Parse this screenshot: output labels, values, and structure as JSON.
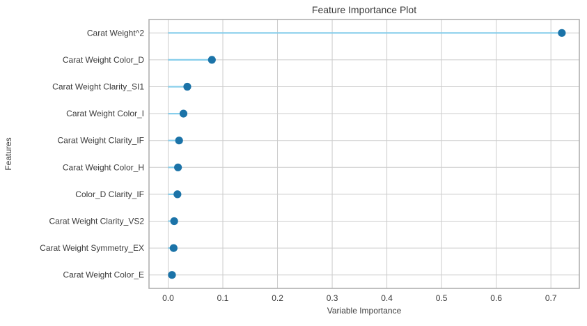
{
  "chart_data": {
    "type": "scatter",
    "variant": "lollipop",
    "title": "Feature Importance Plot",
    "xlabel": "Variable Importance",
    "ylabel": "Features",
    "categories": [
      "Carat Weight^2",
      "Carat Weight Color_D",
      "Carat Weight Clarity_SI1",
      "Carat Weight Color_I",
      "Carat Weight Clarity_IF",
      "Carat Weight Color_H",
      "Color_D Clarity_IF",
      "Carat Weight Clarity_VS2",
      "Carat Weight Symmetry_EX",
      "Carat Weight Color_E"
    ],
    "values": [
      0.72,
      0.08,
      0.035,
      0.028,
      0.02,
      0.018,
      0.017,
      0.011,
      0.01,
      0.007
    ],
    "x_ticks": [
      0.0,
      0.1,
      0.2,
      0.3,
      0.4,
      0.5,
      0.6,
      0.7
    ],
    "xlim": [
      -0.035,
      0.752
    ],
    "grid": true,
    "legend": "none",
    "colors": {
      "stem": "#87ceeb",
      "dot": "#1b73a8",
      "grid": "#cccccc",
      "border": "#b0b0b0",
      "text": "#3a3a3a",
      "background": "#ffffff"
    }
  }
}
